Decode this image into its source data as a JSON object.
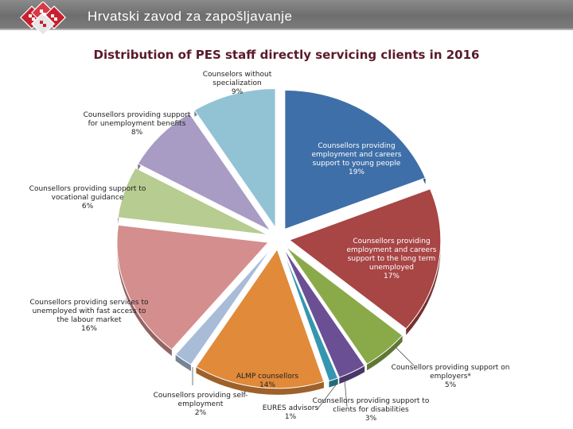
{
  "header": {
    "title": "Hrvatski zavod za zapošljavanje"
  },
  "colors": {
    "header_bg": "#7a7a7a",
    "title_color": "#5a1a2a",
    "logo_red": "#c8202e"
  },
  "chart_data": {
    "type": "pie",
    "title": "Distribution of PES staff directly servicing clients in 2016",
    "style": "exploded 3D pie",
    "slices": [
      {
        "label": "Counsellors providing employment and careers support to young people",
        "display": [
          "Counsellors providing",
          "employment and careers",
          "support to young people",
          "19%"
        ],
        "value": 19,
        "color": "#3f6fa8"
      },
      {
        "label": "Counsellors providing employment and careers support to the long term unemployed",
        "display": [
          "Counsellors providing",
          "employment and careers",
          "support to the long term",
          "unemployed",
          "17%"
        ],
        "value": 17,
        "color": "#a84545"
      },
      {
        "label": "Counsellors providing support on employers*",
        "display": [
          "Counsellors providing support on",
          "employers*",
          "5%"
        ],
        "value": 5,
        "color": "#8aaa4a"
      },
      {
        "label": "Counsellors providing support to clients for disabilities",
        "display": [
          "Counsellors providing support to",
          "clients for disabilities",
          "3%"
        ],
        "value": 3,
        "color": "#6a4f94"
      },
      {
        "label": "EURES advisors",
        "display": [
          "EURES advisors",
          "1%"
        ],
        "value": 1,
        "color": "#3596b0"
      },
      {
        "label": "ALMP counsellors",
        "display": [
          "ALMP counsellors",
          "14%"
        ],
        "value": 14,
        "color": "#e08a3a"
      },
      {
        "label": "Counsellors providing self-employment",
        "display": [
          "Counsellors providing self-",
          "employment",
          "2%"
        ],
        "value": 2,
        "color": "#a8bcd8"
      },
      {
        "label": "Counsellors providing services to unemployed with fast access to the labour market",
        "display": [
          "Counsellors providing services to",
          "unemployed with fast access to",
          "the labour market",
          "16%"
        ],
        "value": 16,
        "color": "#d48e8e"
      },
      {
        "label": "Counsellors providing support to vocational guidance",
        "display": [
          "Counsellors providing support to",
          "vocational guidance",
          "6%"
        ],
        "value": 6,
        "color": "#b6cc90"
      },
      {
        "label": "Counsellors providing support for unemployment benefits",
        "display": [
          "Counsellors providing support",
          "for unemployment benefits",
          "8%"
        ],
        "value": 8,
        "color": "#a89cc4"
      },
      {
        "label": "Counselors without specialization",
        "display": [
          "Counselors without",
          "specialization",
          "9%"
        ],
        "value": 9,
        "color": "#92c3d4"
      }
    ]
  }
}
